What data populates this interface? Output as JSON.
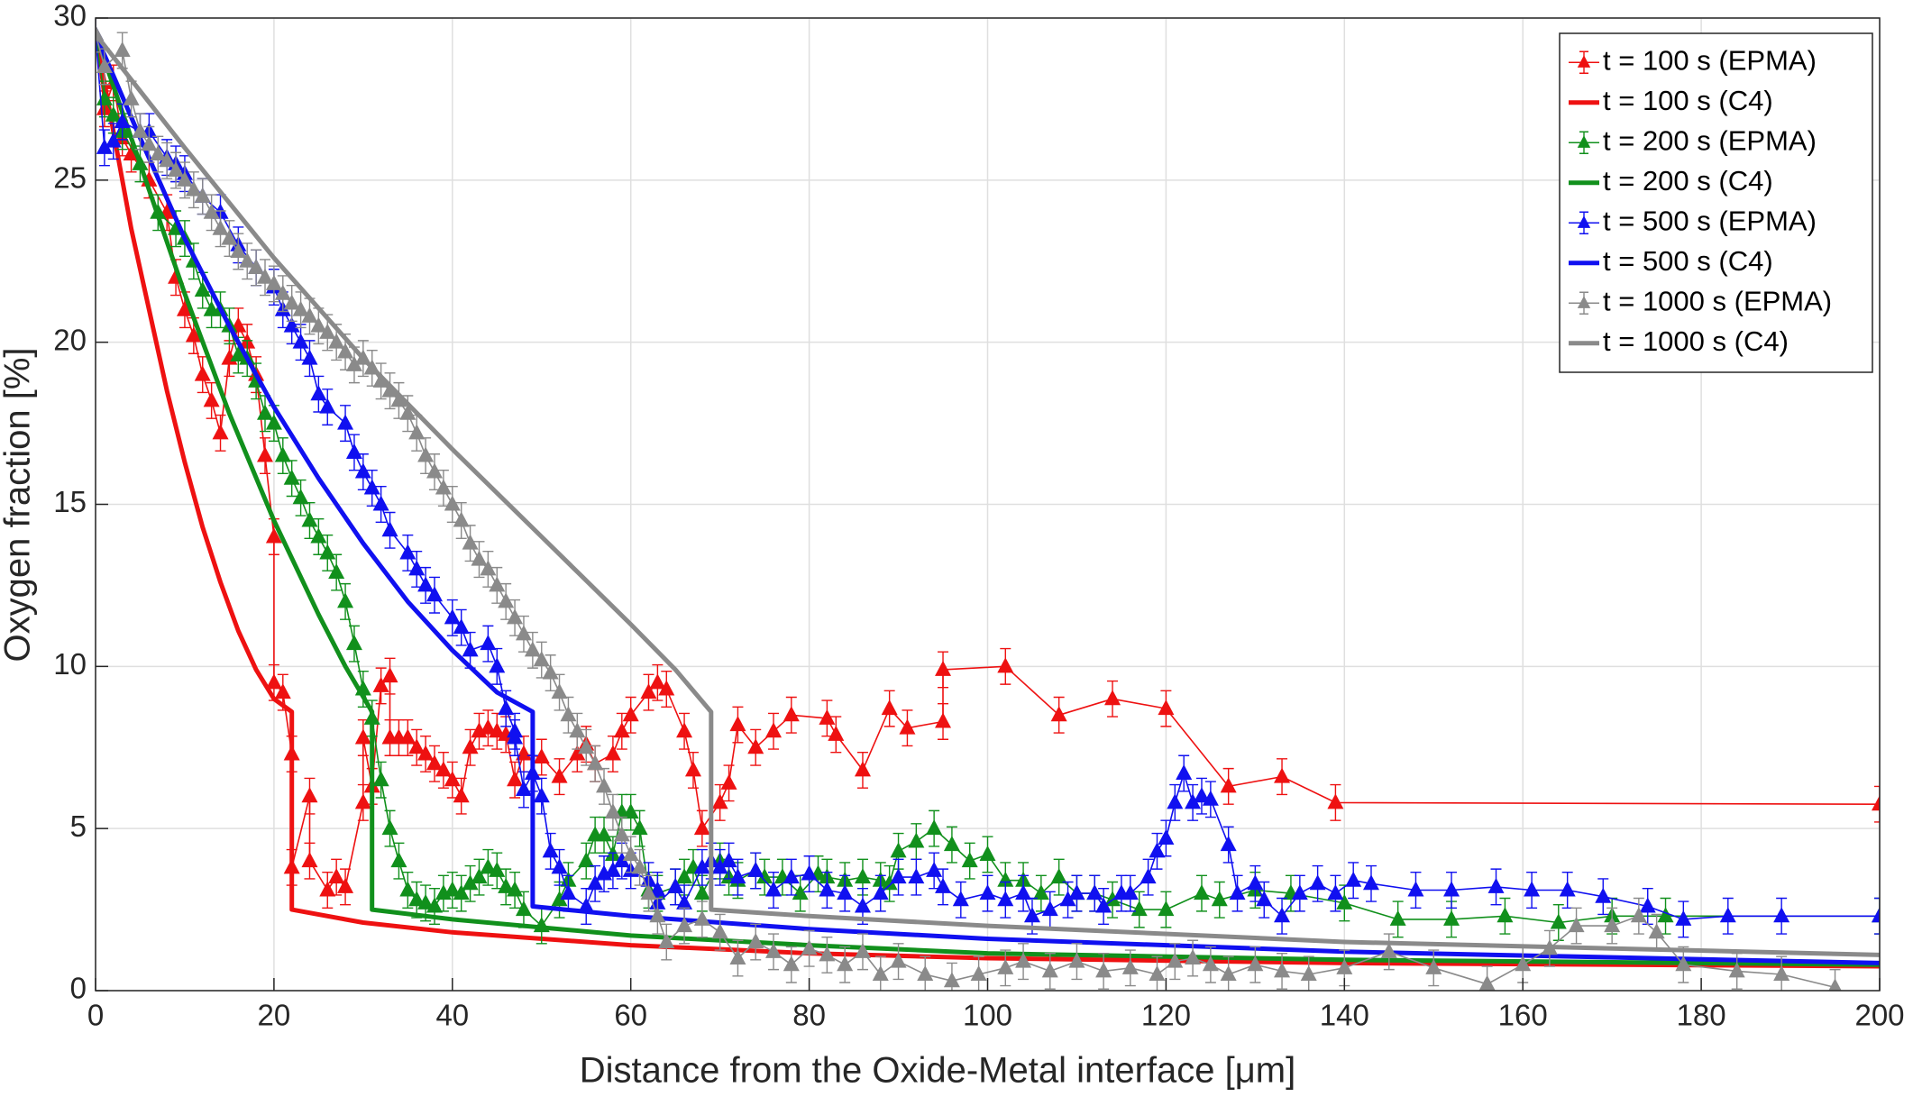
{
  "chart_data": {
    "type": "line",
    "xlabel": "Distance from the Oxide-Metal interface [μm]",
    "ylabel": "Oxygen fraction [%]",
    "xlim": [
      0,
      200
    ],
    "ylim": [
      0,
      30
    ],
    "xticks": [
      0,
      20,
      40,
      60,
      80,
      100,
      120,
      140,
      160,
      180,
      200
    ],
    "yticks": [
      0,
      5,
      10,
      15,
      20,
      25,
      30
    ],
    "grid": true,
    "legend": "northeast",
    "series": [
      {
        "name": "t = 100 s (EPMA)",
        "color": "#ee1111",
        "marker": "triangle",
        "error": 0.55,
        "x": [
          0,
          1,
          2,
          3,
          4,
          6,
          8,
          9,
          10,
          11,
          12,
          13,
          14,
          15,
          16,
          17,
          18,
          19,
          20,
          20,
          21,
          22,
          22,
          24,
          24,
          26,
          27,
          28,
          30,
          30,
          31,
          32,
          33,
          33,
          34,
          35,
          36,
          37,
          38,
          39,
          40,
          41,
          42,
          43,
          44,
          45,
          46,
          47,
          48,
          50,
          52,
          54,
          55,
          56,
          58,
          59,
          60,
          62,
          63,
          64,
          66,
          67,
          68,
          70,
          71,
          72,
          74,
          76,
          78,
          82,
          83,
          86,
          89,
          91,
          95,
          95,
          102,
          108,
          114,
          120,
          127,
          133,
          139,
          200
        ],
        "values": [
          29.5,
          27.2,
          28,
          26.3,
          25.8,
          25,
          24,
          22,
          21,
          20.2,
          19,
          18.2,
          17.2,
          19.5,
          20.5,
          20,
          19,
          16.5,
          14,
          9.5,
          9.2,
          7.3,
          3.8,
          6,
          4,
          3.1,
          3.5,
          3.2,
          5.8,
          7.8,
          6.3,
          9.4,
          9.7,
          7.8,
          7.8,
          7.8,
          7.5,
          7.3,
          7,
          6.8,
          6.5,
          6,
          7.5,
          8,
          8.1,
          8,
          7.9,
          6.5,
          7.3,
          7.2,
          6.6,
          7.3,
          7.6,
          7,
          7.3,
          8,
          8.5,
          9.2,
          9.5,
          9.3,
          8,
          6.8,
          5,
          5.8,
          6.4,
          8.2,
          7.5,
          8,
          8.5,
          8.4,
          7.9,
          6.8,
          8.7,
          8.1,
          8.3,
          9.9,
          10,
          8.5,
          9,
          8.7,
          6.3,
          6.6,
          5.8,
          5.75
        ]
      },
      {
        "name": "t = 100 s (C4)",
        "color": "#ee1111",
        "x": [
          0,
          2,
          4,
          6,
          8,
          10,
          12,
          14,
          16,
          18,
          20,
          22,
          22,
          30,
          40,
          60,
          80,
          100,
          140,
          200
        ],
        "values": [
          29.5,
          26.5,
          23.5,
          21,
          18.5,
          16.3,
          14.3,
          12.6,
          11.1,
          9.9,
          9,
          8.6,
          2.5,
          2.1,
          1.8,
          1.4,
          1.15,
          1,
          0.85,
          0.75
        ]
      },
      {
        "name": "t = 200 s (EPMA)",
        "color": "#11901c",
        "marker": "triangle",
        "error": 0.55,
        "x": [
          0,
          1,
          2,
          3,
          5,
          7,
          9,
          10,
          11,
          12,
          13,
          14,
          15,
          16,
          17,
          18,
          19,
          20,
          21,
          22,
          23,
          24,
          25,
          26,
          27,
          28,
          29,
          30,
          31,
          32,
          33,
          34,
          35,
          36,
          37,
          38,
          39,
          40,
          41,
          42,
          43,
          44,
          45,
          46,
          47,
          48,
          50,
          52,
          53,
          55,
          56,
          57,
          58,
          59,
          60,
          61,
          62,
          63,
          65,
          66,
          67,
          68,
          70,
          71,
          72,
          74,
          75,
          77,
          79,
          81,
          82,
          84,
          86,
          88,
          89,
          90,
          92,
          94,
          96,
          98,
          100,
          102,
          104,
          106,
          108,
          110,
          112,
          114,
          117,
          120,
          124,
          126,
          130,
          134,
          140,
          146,
          152,
          158,
          164,
          170,
          176,
          200
        ],
        "values": [
          29.5,
          27.5,
          27,
          26.5,
          25.5,
          24,
          23.5,
          23.2,
          22.5,
          21.6,
          21,
          21,
          20.5,
          19.6,
          19.5,
          18.8,
          17.8,
          17.5,
          16.5,
          15.8,
          15.2,
          14.5,
          14,
          13.5,
          12.9,
          12,
          10.7,
          9.3,
          8.4,
          6.5,
          5,
          4,
          3.1,
          2.8,
          2.7,
          2.6,
          3,
          3.1,
          3,
          3.3,
          3.5,
          3.8,
          3.7,
          3.2,
          3.1,
          2.5,
          2,
          2.8,
          3.4,
          4,
          4.8,
          4.8,
          4.2,
          5.5,
          5.5,
          5,
          3.1,
          3,
          3.2,
          3.5,
          3.8,
          3,
          4,
          3.5,
          3.4,
          3.7,
          3.5,
          3.5,
          3,
          3.6,
          3.5,
          3.4,
          3.5,
          3.4,
          3.3,
          4.3,
          4.6,
          5,
          4.5,
          4,
          4.2,
          3.4,
          3.4,
          3,
          3.5,
          3,
          3,
          2.8,
          2.5,
          2.5,
          3,
          2.8,
          3.1,
          3,
          2.7,
          2.2,
          2.2,
          2.3,
          2.1,
          2.3,
          2.3,
          2.3
        ]
      },
      {
        "name": "t = 200 s (C4)",
        "color": "#11901c",
        "x": [
          0,
          5,
          10,
          15,
          20,
          25,
          28,
          31,
          31,
          40,
          60,
          80,
          100,
          140,
          200
        ],
        "values": [
          29.5,
          25.5,
          21.5,
          17.8,
          14.5,
          11.6,
          10,
          8.6,
          2.5,
          2.2,
          1.7,
          1.4,
          1.15,
          0.95,
          0.8
        ]
      },
      {
        "name": "t = 500 s (EPMA)",
        "color": "#1010f0",
        "marker": "triangle",
        "error": 0.55,
        "x": [
          0,
          1,
          2,
          3,
          5,
          6,
          8,
          9,
          10,
          12,
          14,
          16,
          18,
          20,
          21,
          22,
          23,
          24,
          25,
          26,
          28,
          29,
          30,
          31,
          32,
          33,
          35,
          36,
          37,
          38,
          40,
          41,
          42,
          44,
          45,
          46,
          47,
          47,
          48,
          49,
          50,
          51,
          52,
          53,
          55,
          56,
          57,
          58,
          59,
          60,
          62,
          63,
          63,
          65,
          66,
          68,
          69,
          70,
          71,
          72,
          74,
          76,
          78,
          80,
          82,
          84,
          86,
          88,
          90,
          92,
          94,
          95,
          97,
          100,
          102,
          104,
          105,
          107,
          109,
          110,
          112,
          113,
          115,
          116,
          118,
          119,
          120,
          121,
          122,
          123,
          124,
          125,
          127,
          128,
          130,
          131,
          133,
          135,
          137,
          139,
          141,
          143,
          148,
          152,
          157,
          161,
          165,
          169,
          174,
          178,
          183,
          189,
          200
        ],
        "values": [
          29.5,
          26,
          26.2,
          26.8,
          26.5,
          26.5,
          25.7,
          25.5,
          25.2,
          24.5,
          24,
          23,
          22.3,
          21.7,
          21,
          20.5,
          20,
          19.5,
          18.4,
          18,
          17.5,
          16.6,
          16,
          15.5,
          15,
          14.2,
          13.5,
          13,
          12.5,
          12.2,
          11.5,
          11.2,
          10.5,
          10.7,
          10,
          8.7,
          8,
          7.8,
          6.2,
          6.7,
          6,
          4.3,
          3.8,
          3,
          2.6,
          3.3,
          3.6,
          3.7,
          4,
          3.7,
          3.4,
          3.1,
          2.7,
          3.2,
          2.7,
          3.8,
          4,
          3.8,
          4,
          3.5,
          3.7,
          3.1,
          3.5,
          3.6,
          3.1,
          3,
          2.6,
          3,
          3.5,
          3.5,
          3.7,
          3.2,
          2.8,
          3,
          2.8,
          3,
          2.3,
          2.5,
          2.8,
          3,
          3,
          2.6,
          3,
          3,
          3.5,
          4.3,
          4.7,
          5.8,
          6.7,
          5.8,
          6,
          5.9,
          4.5,
          3,
          3.3,
          2.8,
          2.3,
          3,
          3.3,
          3,
          3.4,
          3.3,
          3.1,
          3.1,
          3.2,
          3.1,
          3.1,
          2.9,
          2.6,
          2.2,
          2.3,
          2.3,
          2.3
        ]
      },
      {
        "name": "t = 500 s (C4)",
        "color": "#1010f0",
        "x": [
          0,
          5,
          10,
          15,
          20,
          25,
          30,
          35,
          40,
          45,
          49,
          49,
          60,
          80,
          100,
          140,
          200
        ],
        "values": [
          29.5,
          26.3,
          23.2,
          20.5,
          18,
          15.8,
          13.8,
          12,
          10.5,
          9.2,
          8.6,
          2.6,
          2.3,
          1.9,
          1.6,
          1.2,
          0.85
        ]
      },
      {
        "name": "t = 1000 s (EPMA)",
        "color": "#8a8a8a",
        "marker": "triangle",
        "error": 0.55,
        "x": [
          0,
          1,
          3,
          4,
          5,
          6,
          7,
          8,
          9,
          10,
          11,
          12,
          13,
          14,
          15,
          16,
          17,
          18,
          19,
          20,
          21,
          22,
          23,
          24,
          25,
          26,
          27,
          28,
          29,
          30,
          31,
          32,
          33,
          34,
          35,
          36,
          37,
          38,
          39,
          40,
          41,
          42,
          43,
          44,
          45,
          46,
          47,
          48,
          49,
          50,
          51,
          52,
          53,
          54,
          55,
          56,
          57,
          58,
          59,
          60,
          61,
          62,
          63,
          64,
          66,
          68,
          70,
          72,
          74,
          76,
          78,
          80,
          82,
          84,
          86,
          88,
          90,
          93,
          96,
          99,
          102,
          104,
          107,
          110,
          113,
          116,
          119,
          121,
          123,
          125,
          127,
          130,
          133,
          136,
          140,
          145,
          150,
          156,
          160,
          163,
          166,
          170,
          173,
          175,
          178,
          184,
          189,
          195
        ],
        "values": [
          29.5,
          28.5,
          29,
          27.5,
          26.5,
          26.1,
          25.8,
          25.6,
          25.3,
          25,
          24.7,
          24.5,
          24,
          23.5,
          23.2,
          22.8,
          22.5,
          22.3,
          22,
          21.8,
          21.5,
          21.2,
          21,
          20.8,
          20.5,
          20.3,
          20,
          19.7,
          19.3,
          19.5,
          19.2,
          18.8,
          18.5,
          18.2,
          17.8,
          17.2,
          16.5,
          16,
          15.5,
          15,
          14.5,
          13.8,
          13.3,
          13,
          12.5,
          12,
          11.5,
          11,
          10.5,
          10.2,
          9.8,
          9.2,
          8.5,
          8,
          7.5,
          7,
          6.3,
          5.5,
          4.8,
          4.2,
          3.8,
          3,
          2.3,
          1.5,
          2,
          2.2,
          1.8,
          1,
          1.5,
          1.2,
          0.8,
          1.3,
          1.1,
          0.8,
          1.2,
          0.5,
          0.9,
          0.5,
          0.3,
          0.5,
          0.7,
          0.9,
          0.6,
          0.9,
          0.6,
          0.7,
          0.5,
          0.9,
          1,
          0.8,
          0.5,
          0.8,
          0.6,
          0.5,
          0.7,
          1.2,
          0.7,
          0.2,
          0.8,
          1.3,
          2,
          2,
          2.3,
          1.8,
          0.8,
          0.6,
          0.5,
          0.1
        ]
      },
      {
        "name": "t = 1000 s (C4)",
        "color": "#8a8a8a",
        "x": [
          0,
          10,
          20,
          30,
          40,
          50,
          60,
          65,
          69,
          69,
          80,
          100,
          140,
          200
        ],
        "values": [
          29.5,
          26,
          22.6,
          19.5,
          16.7,
          14,
          11.3,
          9.9,
          8.6,
          2.5,
          2.3,
          2,
          1.5,
          1.1
        ]
      }
    ]
  }
}
